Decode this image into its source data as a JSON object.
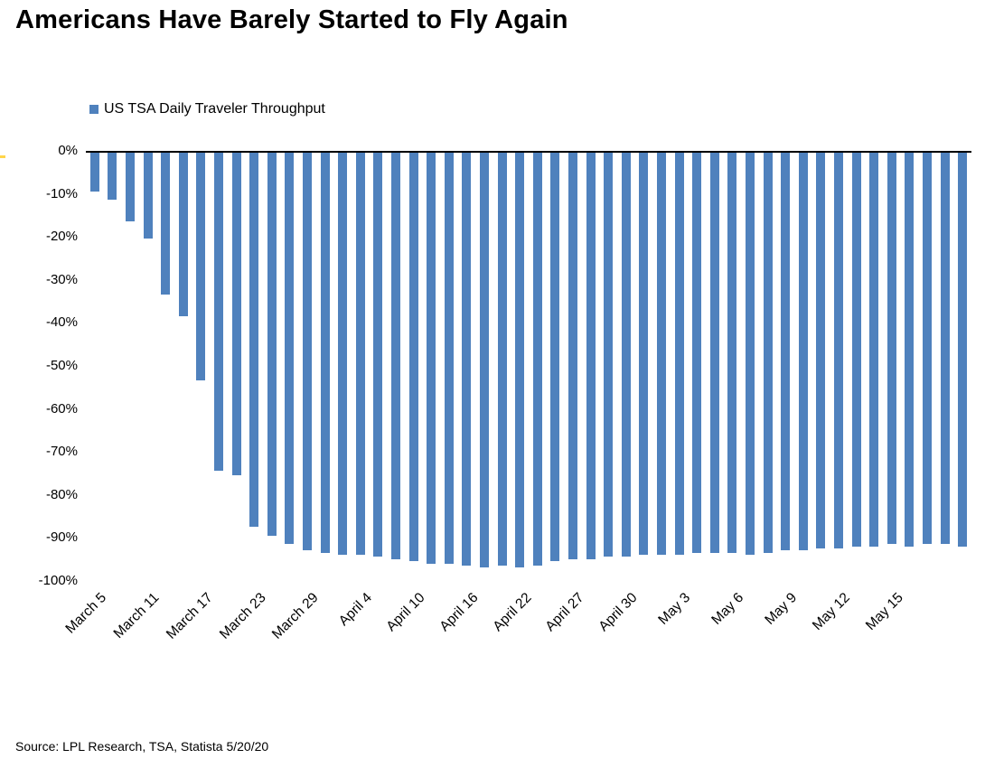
{
  "title": "Americans Have Barely Started to Fly Again",
  "legend": {
    "label": "US TSA Daily Traveler Throughput",
    "swatch_color": "#4f81bd"
  },
  "source": "Source: LPL Research, TSA, Statista 5/20/20",
  "chart_data": {
    "type": "bar",
    "title": "Americans Have Barely Started to Fly Again",
    "series_name": "US TSA Daily Traveler Throughput",
    "unit": "percent change vs. year ago",
    "bar_color": "#4f81bd",
    "axis_line_color": "#000000",
    "grid": false,
    "legend_position": "top-left",
    "ylim": [
      -100,
      0
    ],
    "y_tick_labels": [
      "0%",
      "-10%",
      "-20%",
      "-30%",
      "-40%",
      "-50%",
      "-60%",
      "-70%",
      "-80%",
      "-90%",
      "-100%"
    ],
    "x_tick_labels": [
      "March 5",
      "March 11",
      "March 17",
      "March 23",
      "March 29",
      "April 4",
      "April 10",
      "April 16",
      "April 22",
      "April 27",
      "April 30",
      "May 3",
      "May 6",
      "May 9",
      "May 12",
      "May 15"
    ],
    "x_tick_every": 3,
    "values": [
      -9,
      -11,
      -16,
      -20,
      -33,
      -38,
      -53,
      -74,
      -75,
      -87,
      -89,
      -91,
      -92.5,
      -93,
      -93.5,
      -93.5,
      -94,
      -94.5,
      -95,
      -95.5,
      -95.5,
      -96,
      -96.5,
      -96,
      -96.5,
      -96,
      -95,
      -94.5,
      -94.5,
      -94,
      -94,
      -93.5,
      -93.5,
      -93.5,
      -93,
      -93,
      -93,
      -93.5,
      -93,
      -92.5,
      -92.5,
      -92,
      -92,
      -91.5,
      -91.5,
      -91,
      -91.5,
      -91,
      -91,
      -91.5
    ]
  }
}
